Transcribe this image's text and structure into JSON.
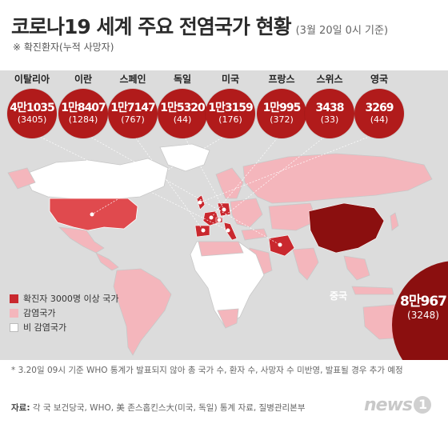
{
  "header": {
    "title": "코로나19 세계 주요 전염국가 현황",
    "date_note": "(3월 20일 0시 기준)",
    "subtitle": "※ 확진환자(누적 사망자)"
  },
  "countries": [
    {
      "name": "이탈리아",
      "cases": "4만1035",
      "deaths": "(3405)"
    },
    {
      "name": "이란",
      "cases": "1만8407",
      "deaths": "(1284)"
    },
    {
      "name": "스페인",
      "cases": "1만7147",
      "deaths": "(767)"
    },
    {
      "name": "독일",
      "cases": "1만5320",
      "deaths": "(44)"
    },
    {
      "name": "미국",
      "cases": "1만3159",
      "deaths": "(176)"
    },
    {
      "name": "프랑스",
      "cases": "1만995",
      "deaths": "(372)"
    },
    {
      "name": "스위스",
      "cases": "3438",
      "deaths": "(33)"
    },
    {
      "name": "영국",
      "cases": "3269",
      "deaths": "(44)"
    }
  ],
  "china": {
    "name": "중국",
    "cases": "8만967",
    "deaths": "(3248)"
  },
  "legend": [
    {
      "label": "확진자 3000명 이상 국가",
      "color": "#c9282e"
    },
    {
      "label": "감염국가",
      "color": "#f4b6bc"
    },
    {
      "label": "비 감염국가",
      "color": "#ffffff"
    }
  ],
  "colors": {
    "bubble": "#b11b1b",
    "china_bubble": "#8b0f0f",
    "ocean": "#dcdcdc"
  },
  "footnote": "* 3.20일 09시 기준 WHO 통계가 발표되지 않아 총 국가 수, 환자 수, 사망자 수 미반영, 발표될 경우 추가 예정",
  "source": {
    "label": "자료:",
    "text": "각 국 보건당국, WHO, 美 존스홉킨스大(미국, 독일) 통계 자료, 질병관리본부"
  },
  "logo": {
    "text": "news",
    "mark": "1"
  }
}
